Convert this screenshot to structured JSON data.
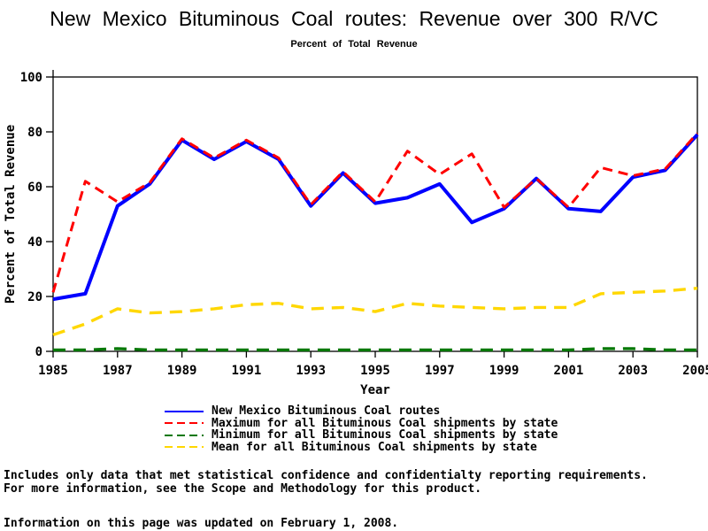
{
  "title": "New Mexico Bituminous Coal routes: Revenue over 300 R/VC",
  "subtitle": "Percent of Total Revenue",
  "chart_data": {
    "type": "line",
    "title": "New Mexico Bituminous Coal routes: Revenue over 300 R/VC",
    "subtitle": "Percent of Total Revenue",
    "xlabel": "Year",
    "ylabel": "Percent of Total Revenue",
    "xlim": [
      1985,
      2005
    ],
    "ylim": [
      0,
      100
    ],
    "xticks": [
      1985,
      1987,
      1989,
      1991,
      1993,
      1995,
      1997,
      1999,
      2001,
      2003,
      2005
    ],
    "yticks": [
      0,
      20,
      40,
      60,
      80,
      100
    ],
    "grid": false,
    "legend_position": "bottom",
    "x": [
      1985,
      1986,
      1987,
      1988,
      1989,
      1990,
      1991,
      1992,
      1993,
      1994,
      1995,
      1996,
      1997,
      1998,
      1999,
      2000,
      2001,
      2002,
      2003,
      2004,
      2005
    ],
    "series": [
      {
        "name": "New Mexico Bituminous Coal routes",
        "color": "#0000ff",
        "style": "solid",
        "values": [
          19,
          21,
          53,
          61,
          77,
          70,
          76.5,
          70,
          53,
          65,
          54,
          56,
          61,
          47,
          52,
          63,
          52,
          51,
          63.5,
          66,
          79
        ]
      },
      {
        "name": "Maximum for all Bituminous Coal shipments by state",
        "color": "#ff0000",
        "style": "dashed",
        "values": [
          21.5,
          62,
          54.5,
          61.5,
          77.5,
          70.5,
          77,
          70.5,
          53.5,
          65.5,
          54.5,
          73,
          64.5,
          72,
          52.5,
          63,
          52.5,
          67,
          64,
          66.5,
          79.5
        ]
      },
      {
        "name": "Minimum for all Bituminous Coal shipments by state",
        "color": "#077807",
        "style": "dashed",
        "values": [
          0.5,
          0.5,
          1,
          0.5,
          0.5,
          0.5,
          0.5,
          0.5,
          0.5,
          0.5,
          0.5,
          0.5,
          0.5,
          0.5,
          0.5,
          0.5,
          0.5,
          1,
          1,
          0.5,
          0.5
        ]
      },
      {
        "name": "Mean for all Bituminous Coal shipments by state",
        "color": "#ffd700",
        "style": "dashed",
        "values": [
          6,
          10,
          15.5,
          14,
          14.5,
          15.5,
          17,
          17.5,
          15.5,
          16,
          14.5,
          17.5,
          16.5,
          16,
          15.5,
          16,
          16,
          21,
          21.5,
          22,
          23
        ]
      }
    ]
  },
  "footnotes": {
    "line1": "Includes only data that met statistical confidence and confidentialty reporting requirements.",
    "line2": "For more information, see the Scope and Methodology for this product.",
    "updated": "Information on this page was updated on February 1, 2008."
  }
}
